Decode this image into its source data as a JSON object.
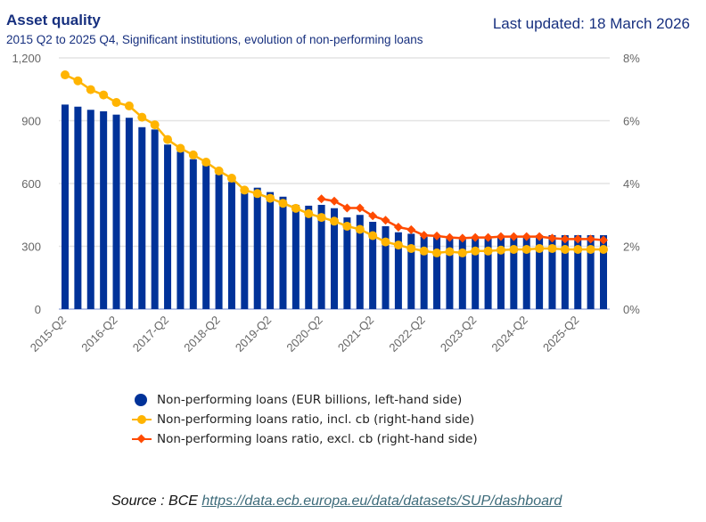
{
  "header": {
    "title": "Asset quality",
    "subtitle": "2015 Q2 to 2025 Q4, Significant institutions, evolution of non-performing loans",
    "last_updated": "Last updated: 18 March 2026"
  },
  "chart_data": {
    "type": "bar+line",
    "title": "Asset quality",
    "categories": [
      "2015-Q2",
      "2015-Q3",
      "2015-Q4",
      "2016-Q1",
      "2016-Q2",
      "2016-Q3",
      "2016-Q4",
      "2017-Q1",
      "2017-Q2",
      "2017-Q3",
      "2017-Q4",
      "2018-Q1",
      "2018-Q2",
      "2018-Q3",
      "2018-Q4",
      "2019-Q1",
      "2019-Q2",
      "2019-Q3",
      "2019-Q4",
      "2020-Q1",
      "2020-Q2",
      "2020-Q3",
      "2020-Q4",
      "2021-Q1",
      "2021-Q2",
      "2021-Q3",
      "2021-Q4",
      "2022-Q1",
      "2022-Q2",
      "2022-Q3",
      "2022-Q4",
      "2023-Q1",
      "2023-Q2",
      "2023-Q3",
      "2023-Q4",
      "2024-Q1",
      "2024-Q2",
      "2024-Q3",
      "2024-Q4",
      "2025-Q1",
      "2025-Q2",
      "2025-Q3",
      "2025-Q4"
    ],
    "x_tick_labels": [
      "2015-Q2",
      "2016-Q2",
      "2017-Q2",
      "2018-Q2",
      "2019-Q2",
      "2020-Q2",
      "2021-Q2",
      "2022-Q2",
      "2023-Q2",
      "2024-Q2",
      "2025-Q2"
    ],
    "y_left": {
      "range": [
        0,
        1200
      ],
      "ticks": [
        "0",
        "300",
        "600",
        "900",
        "1,200"
      ]
    },
    "y_right": {
      "range": [
        0,
        8
      ],
      "ticks": [
        "0%",
        "2%",
        "4%",
        "6%",
        "8%"
      ]
    },
    "grid": true,
    "legend_position": "bottom",
    "series": [
      {
        "name": "Non-performing loans (EUR billions, left-hand side)",
        "type": "bar",
        "axis": "left",
        "color": "#003299",
        "values": [
          977,
          967,
          952,
          945,
          929,
          914,
          869,
          858,
          786,
          752,
          716,
          689,
          644,
          607,
          555,
          580,
          559,
          537,
          498,
          494,
          498,
          482,
          438,
          450,
          417,
          396,
          367,
          360,
          346,
          346,
          342,
          339,
          339,
          342,
          346,
          346,
          349,
          353,
          353,
          353,
          353,
          353,
          353
        ]
      },
      {
        "name": "Non-performing loans ratio, incl. cb (right-hand side)",
        "type": "line",
        "axis": "right",
        "color": "#ffb400",
        "marker": "circle",
        "values": [
          7.46,
          7.27,
          6.99,
          6.82,
          6.58,
          6.47,
          6.11,
          5.87,
          5.4,
          5.12,
          4.91,
          4.68,
          4.4,
          4.17,
          3.79,
          3.68,
          3.53,
          3.37,
          3.21,
          3.04,
          2.92,
          2.8,
          2.64,
          2.54,
          2.34,
          2.14,
          2.04,
          1.93,
          1.85,
          1.79,
          1.83,
          1.79,
          1.85,
          1.85,
          1.88,
          1.9,
          1.9,
          1.93,
          1.93,
          1.9,
          1.9,
          1.9,
          1.9
        ]
      },
      {
        "name": "Non-performing loans ratio, excl. cb (right-hand side)",
        "type": "line",
        "axis": "right",
        "color": "#ff4b00",
        "marker": "diamond",
        "values": [
          null,
          null,
          null,
          null,
          null,
          null,
          null,
          null,
          null,
          null,
          null,
          null,
          null,
          null,
          null,
          null,
          null,
          null,
          null,
          null,
          3.51,
          3.44,
          3.22,
          3.22,
          2.97,
          2.83,
          2.61,
          2.53,
          2.35,
          2.33,
          2.28,
          2.26,
          2.28,
          2.28,
          2.31,
          2.31,
          2.31,
          2.31,
          2.26,
          2.23,
          2.23,
          2.23,
          2.2
        ]
      }
    ]
  },
  "footer": {
    "source_label": "Source : BCE ",
    "source_link": "https://data.ecb.europa.eu/data/datasets/SUP/dashboard"
  }
}
